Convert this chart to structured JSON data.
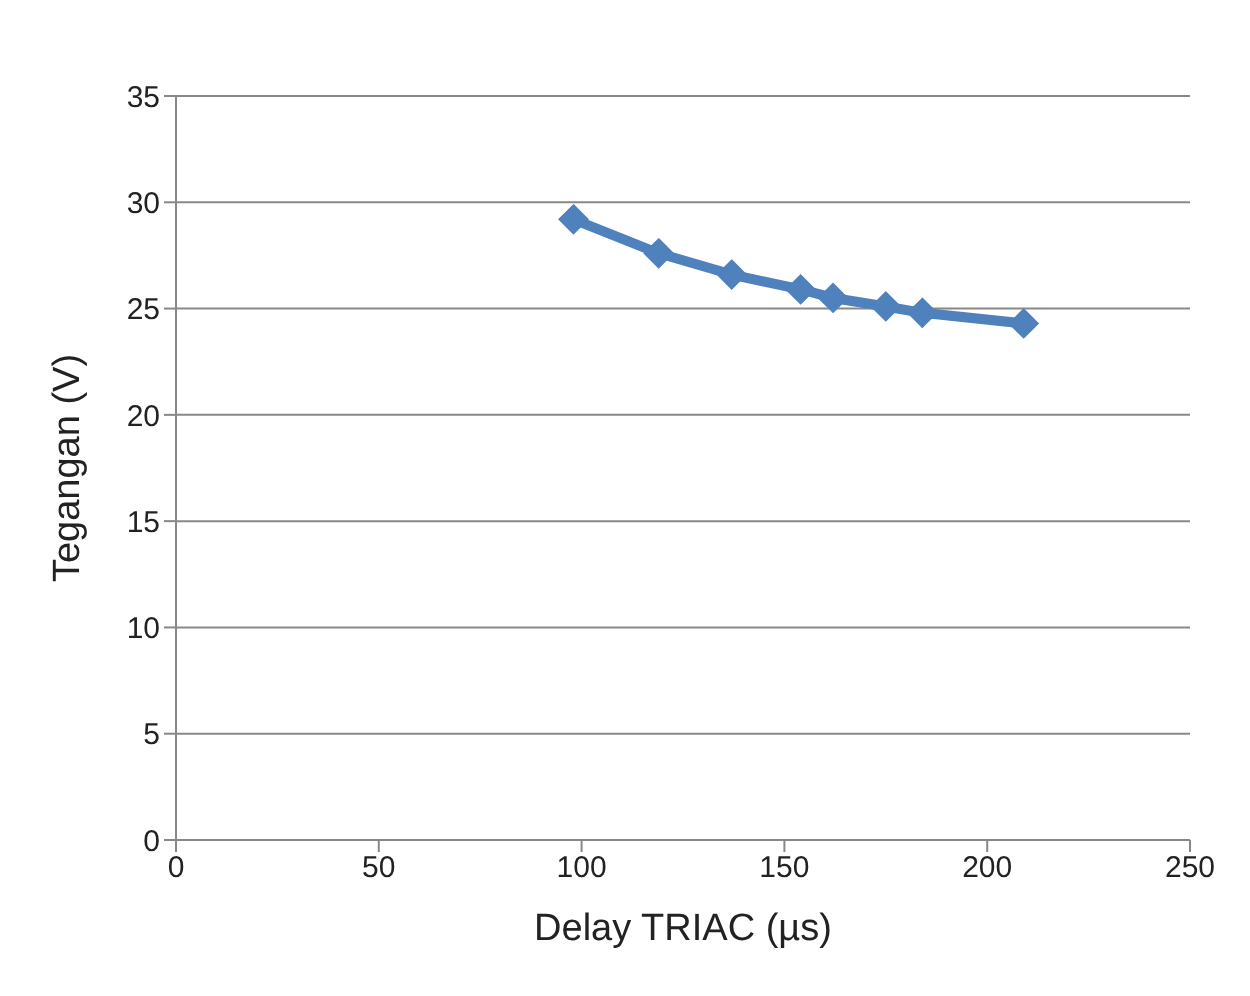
{
  "chart_data": {
    "type": "line",
    "xlabel": "Delay TRIAC (µs)",
    "ylabel": "Tegangan (V)",
    "x": [
      98,
      119,
      137,
      154,
      162,
      175,
      184,
      209
    ],
    "series": [
      {
        "color": "#4f81bd",
        "values": [
          29.2,
          27.6,
          26.6,
          25.9,
          25.5,
          25.1,
          24.8,
          24.3
        ]
      }
    ],
    "xlim": [
      0,
      250
    ],
    "xticks": [
      0,
      50,
      100,
      150,
      200,
      250
    ],
    "ylim": [
      0,
      35
    ],
    "yticks": [
      0,
      5,
      10,
      15,
      20,
      25,
      30,
      35
    ],
    "grid": "y",
    "marker": "diamond",
    "line_style": "solid",
    "legend": false
  }
}
